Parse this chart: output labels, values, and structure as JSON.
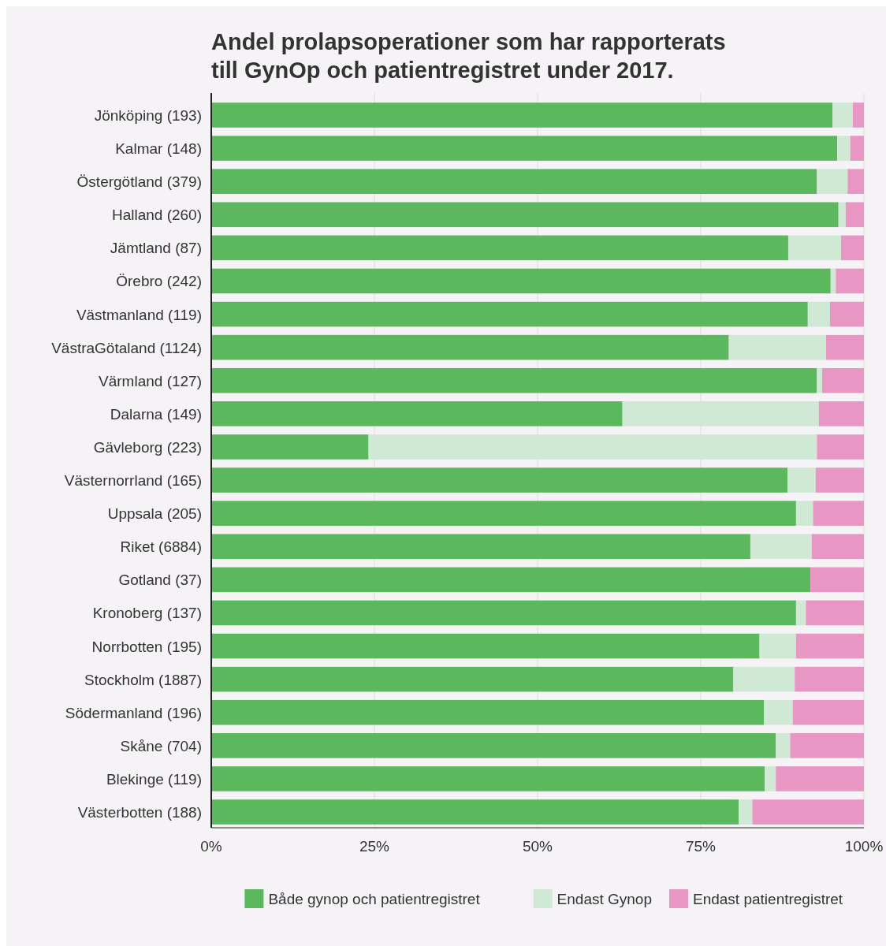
{
  "chart_data": {
    "type": "bar",
    "orientation": "horizontal",
    "stacked": true,
    "title": "Andel prolapsoperationer som har rapporterats till GynOp och patientregistret under 2017.",
    "categories": [
      "Jönköping (193)",
      "Kalmar (148)",
      "Östergötland (379)",
      "Halland (260)",
      "Jämtland (87)",
      "Örebro (242)",
      "Västmanland (119)",
      "VästraGötaland (1124)",
      "Värmland (127)",
      "Dalarna (149)",
      "Gävleborg (223)",
      "Västernorrland (165)",
      "Uppsala (205)",
      "Riket (6884)",
      "Gotland (37)",
      "Kronoberg (137)",
      "Norrbotten (195)",
      "Stockholm (1887)",
      "Södermanland (196)",
      "Skåne (704)",
      "Blekinge (119)",
      "Västerbotten (188)"
    ],
    "series": [
      {
        "name": "Både gynop och patientregistret",
        "color": "#5cb85c",
        "values": [
          95.2,
          95.9,
          92.8,
          96.1,
          88.4,
          94.9,
          91.4,
          79.3,
          92.8,
          63.0,
          24.1,
          88.3,
          89.6,
          82.6,
          91.8,
          89.6,
          84.0,
          80.0,
          84.7,
          86.5,
          84.8,
          80.8
        ]
      },
      {
        "name": "Endast Gynop",
        "color": "#d0e9d4",
        "values": [
          3.1,
          2.0,
          4.7,
          1.1,
          8.1,
          0.8,
          3.4,
          14.9,
          0.8,
          30.1,
          68.7,
          4.3,
          2.6,
          9.4,
          0,
          1.5,
          5.6,
          9.4,
          4.4,
          2.2,
          1.7,
          2.1
        ]
      },
      {
        "name": "Endast patientregistret",
        "color": "#e896c3",
        "values": [
          1.7,
          2.1,
          2.5,
          2.8,
          3.5,
          4.3,
          5.2,
          5.8,
          6.4,
          6.9,
          7.2,
          7.4,
          7.8,
          8.0,
          8.2,
          8.9,
          10.4,
          10.6,
          10.9,
          11.3,
          13.5,
          17.1
        ]
      }
    ],
    "xlim": [
      0,
      100
    ],
    "xticks": [
      {
        "value": 0,
        "label": "0%"
      },
      {
        "value": 25,
        "label": "25%"
      },
      {
        "value": 50,
        "label": "50%"
      },
      {
        "value": 75,
        "label": "75%"
      },
      {
        "value": 100,
        "label": "100%"
      }
    ],
    "grid": "x",
    "legend": "bottom"
  }
}
